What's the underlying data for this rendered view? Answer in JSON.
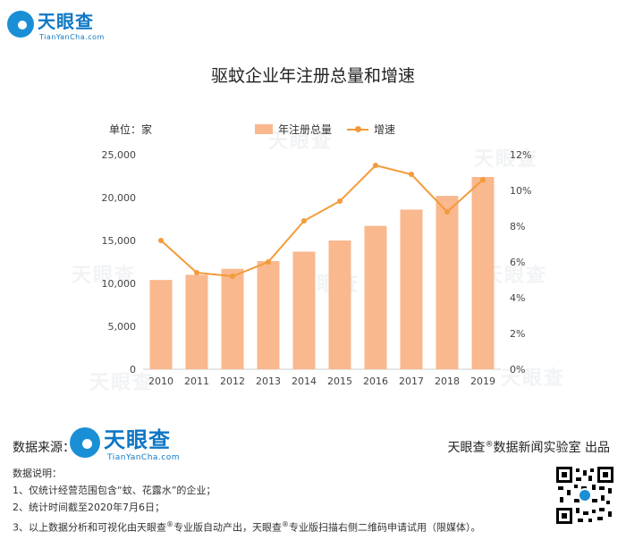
{
  "brand": {
    "name": "天眼查",
    "sub": "TianYanCha.com"
  },
  "title": "驱蚊企业年注册总量和增速",
  "unit": "单位：家",
  "legend": {
    "bar": "年注册总量",
    "line": "增速"
  },
  "chart_data": {
    "type": "bar",
    "title": "驱蚊企业年注册总量和增速",
    "categories": [
      "2010",
      "2011",
      "2012",
      "2013",
      "2014",
      "2015",
      "2016",
      "2017",
      "2018",
      "2019"
    ],
    "series": [
      {
        "name": "年注册总量",
        "type": "bar",
        "axis": "left",
        "values": [
          10400,
          11000,
          11700,
          12600,
          13700,
          15000,
          16700,
          18600,
          20200,
          22400
        ]
      },
      {
        "name": "增速",
        "type": "line",
        "axis": "right",
        "unit": "%",
        "values": [
          7.2,
          5.4,
          5.2,
          6.0,
          8.3,
          9.4,
          11.4,
          10.9,
          8.8,
          10.6
        ]
      }
    ],
    "y_left": {
      "min": 0,
      "max": 25000,
      "ticks": [
        "0",
        "5,000",
        "10,000",
        "15,000",
        "20,000",
        "25,000"
      ]
    },
    "y_right": {
      "min": 0,
      "max": 12,
      "ticks": [
        "0%",
        "2%",
        "4%",
        "6%",
        "8%",
        "10%",
        "12%"
      ]
    },
    "colors": {
      "bar": "#f9b88e",
      "line": "#f39b3a"
    },
    "grid": false,
    "legend_position": "top"
  },
  "footer": {
    "source_label": "数据来源：",
    "producer_pre": "天眼查",
    "producer_sup": "®",
    "producer_post": "数据新闻实验室 出品",
    "notes_title": "数据说明：",
    "note1": "1、仅统计经营范围包含“蚊、花露水”的企业；",
    "note2": "2、统计时间截至2020年7月6日；",
    "note3_a": "3、以上数据分析和可视化由天眼查",
    "note3_sup": "®",
    "note3_b": "专业版自动产出，天眼查",
    "note3_c": "专业版扫描右侧二维码申请试用（限媒体）。"
  }
}
